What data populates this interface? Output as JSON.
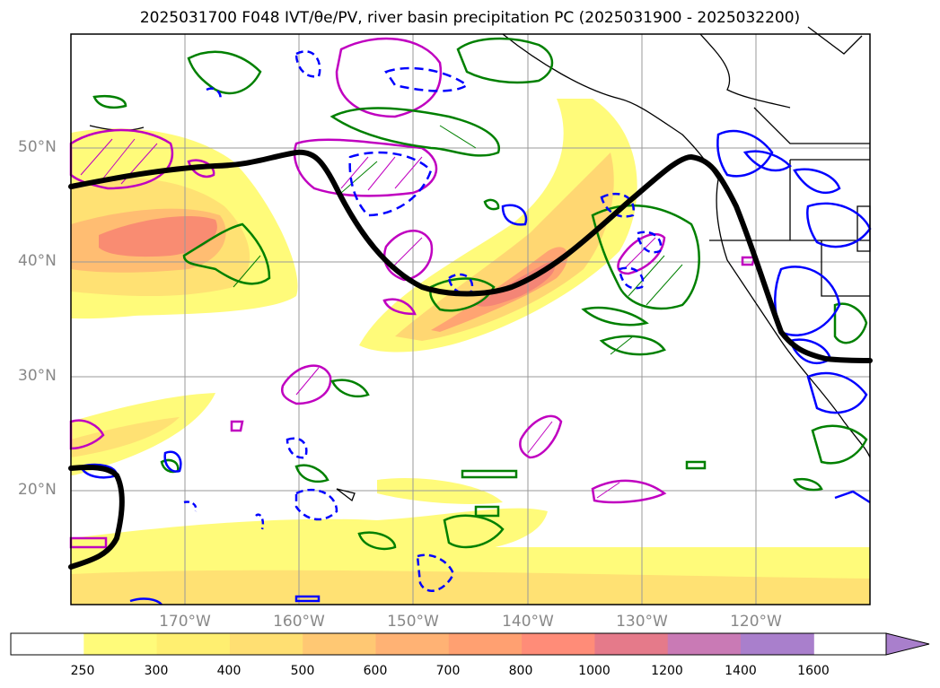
{
  "title": "2025031700 F048 IVT/θe/PV, river basin precipitation PC (2025031900 - 2025032200)",
  "lat_labels": [
    "50°N",
    "40°N",
    "30°N",
    "20°N"
  ],
  "lon_labels": [
    "170°W",
    "160°W",
    "150°W",
    "140°W",
    "130°W",
    "120°W"
  ],
  "colorbar": {
    "ticks": [
      "250",
      "300",
      "400",
      "500",
      "600",
      "700",
      "800",
      "1000",
      "1200",
      "1400",
      "1600"
    ],
    "colors": [
      "#ffffff",
      "#fffb7a",
      "#ffef70",
      "#ffdf72",
      "#ffc873",
      "#ffb274",
      "#ffa071",
      "#ff8c78",
      "#e57a8a",
      "#c97ab5",
      "#a97fcc"
    ]
  },
  "colors": {
    "ivt_low": "#fffb7a",
    "ivt_mid": "#ffd772",
    "ivt_high": "#ff9a6c",
    "ivt_core": "#f78772",
    "pv_contour": "#c000c0",
    "theta_green": "#008000",
    "theta_blue": "#0000ff",
    "jet_line": "#000000"
  }
}
